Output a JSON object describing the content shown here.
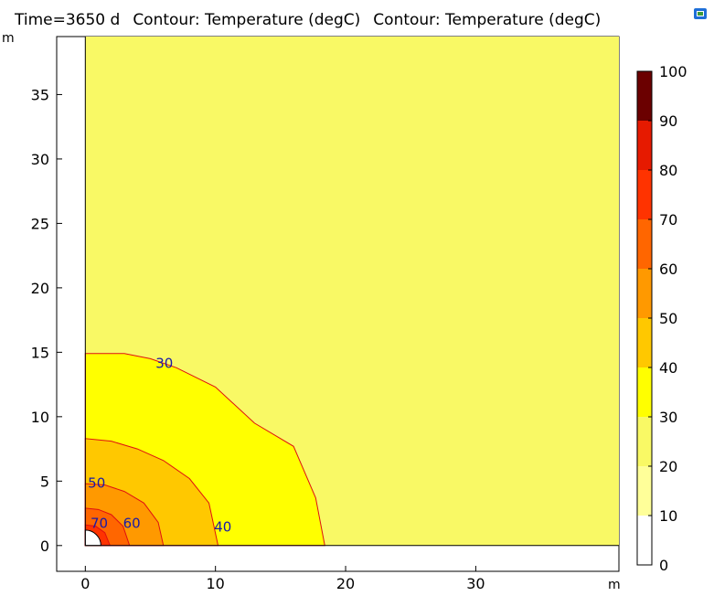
{
  "header": {
    "time": "Time=3650 d",
    "contour1": "Contour: Temperature (degC)",
    "contour2": "Contour: Temperature (degC)"
  },
  "colors": {
    "background_field": "#f9f965",
    "domain_border": "#000000",
    "contour_line": "#e01010",
    "contour_label": "#1a1aa8",
    "corner_icon": "#1e6fd8"
  },
  "icons": {
    "corner": "window-restore-icon"
  },
  "chart_data": {
    "type": "contour",
    "x_unit": "m",
    "y_unit": "m",
    "xlim": [
      -2.2,
      41
    ],
    "ylim": [
      -2,
      39.5
    ],
    "x_ticks": [
      0,
      10,
      20,
      30
    ],
    "y_ticks": [
      0,
      5,
      10,
      15,
      20,
      25,
      30,
      35
    ],
    "levels": [
      {
        "value": 30,
        "color": "#ffff00",
        "boundary": [
          [
            0,
            14.9
          ],
          [
            3,
            14.9
          ],
          [
            5,
            14.5
          ],
          [
            7,
            13.8
          ],
          [
            10,
            12.3
          ],
          [
            13,
            9.5
          ],
          [
            16,
            7.7
          ],
          [
            17.7,
            3.7
          ],
          [
            18.4,
            0
          ]
        ]
      },
      {
        "value": 40,
        "color": "#ffc800",
        "boundary": [
          [
            0,
            8.3
          ],
          [
            2,
            8.1
          ],
          [
            4,
            7.5
          ],
          [
            6,
            6.6
          ],
          [
            8,
            5.2
          ],
          [
            9.5,
            3.3
          ],
          [
            10.2,
            0
          ]
        ]
      },
      {
        "value": 50,
        "color": "#ff9900",
        "boundary": [
          [
            0,
            4.8
          ],
          [
            1.5,
            4.7
          ],
          [
            3,
            4.2
          ],
          [
            4.5,
            3.3
          ],
          [
            5.6,
            1.8
          ],
          [
            6,
            0
          ]
        ]
      },
      {
        "value": 60,
        "color": "#ff6600",
        "boundary": [
          [
            0,
            2.9
          ],
          [
            1,
            2.8
          ],
          [
            2,
            2.4
          ],
          [
            2.9,
            1.5
          ],
          [
            3.4,
            0
          ]
        ]
      },
      {
        "value": 70,
        "color": "#ff3300",
        "boundary": [
          [
            0,
            1.6
          ],
          [
            0.8,
            1.5
          ],
          [
            1.5,
            1.0
          ],
          [
            1.9,
            0
          ]
        ]
      },
      {
        "value": 80,
        "color": "#e61a00",
        "boundary": [
          [
            0,
            1.0
          ],
          [
            0.8,
            0.8
          ],
          [
            1.2,
            0
          ]
        ]
      }
    ],
    "inner_hole_radius": 1.2,
    "contour_labels": [
      {
        "text": "30",
        "x": 5.4,
        "y": 14.1
      },
      {
        "text": "40",
        "x": 9.9,
        "y": 1.4
      },
      {
        "text": "50",
        "x": 0.2,
        "y": 4.8
      },
      {
        "text": "60",
        "x": 2.9,
        "y": 1.7
      },
      {
        "text": "70",
        "x": 0.4,
        "y": 1.7
      }
    ],
    "colorbar": {
      "min": 0,
      "max": 100,
      "tick_labels": [
        "0",
        "10",
        "20",
        "30",
        "40",
        "50",
        "60",
        "70",
        "80",
        "90",
        "100"
      ],
      "bands": [
        {
          "from": 0,
          "to": 10,
          "color": "#ffffff"
        },
        {
          "from": 10,
          "to": 20,
          "color": "#ffff99"
        },
        {
          "from": 20,
          "to": 30,
          "color": "#f9f965"
        },
        {
          "from": 30,
          "to": 40,
          "color": "#ffff00"
        },
        {
          "from": 40,
          "to": 50,
          "color": "#ffc800"
        },
        {
          "from": 50,
          "to": 60,
          "color": "#ff9900"
        },
        {
          "from": 60,
          "to": 70,
          "color": "#ff6600"
        },
        {
          "from": 70,
          "to": 80,
          "color": "#ff3300"
        },
        {
          "from": 80,
          "to": 90,
          "color": "#e61a00"
        },
        {
          "from": 90,
          "to": 100,
          "color": "#6b0000"
        }
      ]
    }
  }
}
